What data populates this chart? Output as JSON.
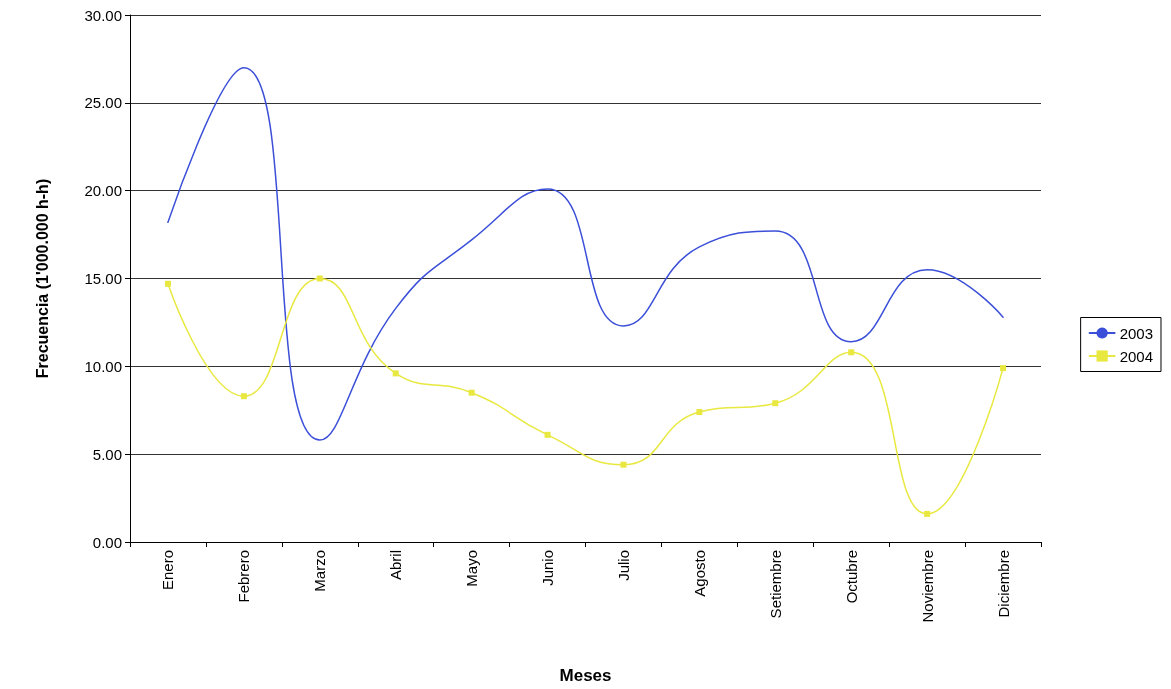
{
  "chart_data": {
    "type": "line",
    "xlabel": "Meses",
    "ylabel": "Frecuencia (1'000.000 h-h)",
    "categories": [
      "Enero",
      "Febrero",
      "Marzo",
      "Abril",
      "Mayo",
      "Junio",
      "Julio",
      "Agosto",
      "Setiembre",
      "Octubre",
      "Noviembre",
      "Diciembre"
    ],
    "series": [
      {
        "name": "2003",
        "color": "#3b4fd8",
        "marker": "none",
        "values": [
          18.2,
          27.0,
          5.8,
          13.3,
          17.2,
          20.1,
          12.3,
          16.8,
          17.7,
          11.4,
          15.5,
          12.8
        ]
      },
      {
        "name": "2004",
        "color": "#e8e840",
        "marker": "square",
        "values": [
          14.7,
          8.3,
          15.0,
          9.6,
          8.5,
          6.1,
          4.4,
          7.4,
          7.9,
          10.8,
          1.6,
          9.9
        ]
      }
    ],
    "ylim": [
      0,
      30
    ],
    "yticks": [
      {
        "value": 0,
        "label": "0.00"
      },
      {
        "value": 5,
        "label": "5.00"
      },
      {
        "value": 10,
        "label": "10.00"
      },
      {
        "value": 15,
        "label": "15.00"
      },
      {
        "value": 20,
        "label": "20.00"
      },
      {
        "value": 25,
        "label": "25.00"
      },
      {
        "value": 30,
        "label": "30.00"
      }
    ],
    "grid": "y",
    "legend": "right",
    "line_style": "solid"
  }
}
